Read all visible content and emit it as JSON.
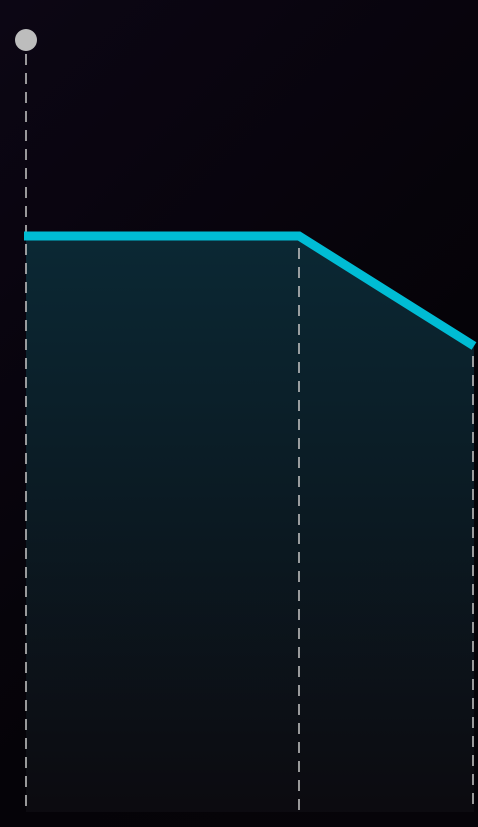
{
  "curve": {
    "line_color": "#00bcd4",
    "fill_top_color": "#0b2a36",
    "fill_bottom_color": "#0c0b10",
    "guide_color": "#bdbdbd",
    "handle_color": "#bdbdbd",
    "handle_icon": "drag-handle"
  }
}
